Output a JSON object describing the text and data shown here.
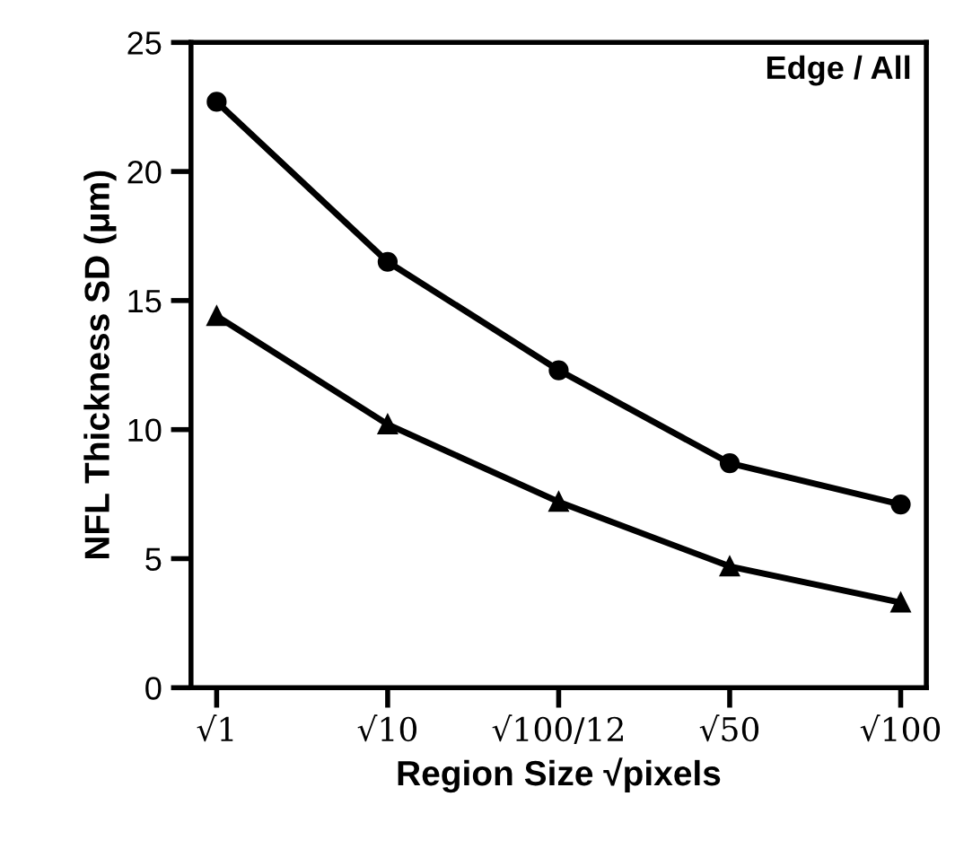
{
  "chart_data": {
    "type": "line",
    "categories": [
      "√1",
      "√10",
      "√100/12",
      "√50",
      "√100"
    ],
    "series": [
      {
        "color": "#000000",
        "marker": "circle",
        "values": [
          22.7,
          16.5,
          12.3,
          8.7,
          7.1
        ]
      },
      {
        "color": "#000000",
        "marker": "triangle",
        "values": [
          14.4,
          10.2,
          7.2,
          4.7,
          3.3
        ]
      }
    ],
    "xlabel": "Region Size √pixels",
    "ylabel": "NFL Thickness SD (μm)",
    "ylim": [
      0,
      25
    ],
    "yticks": [
      0,
      5,
      10,
      15,
      20,
      25
    ],
    "annotations": [
      "Edge / All"
    ],
    "grid": false,
    "legend": false,
    "line_style": "solid"
  }
}
